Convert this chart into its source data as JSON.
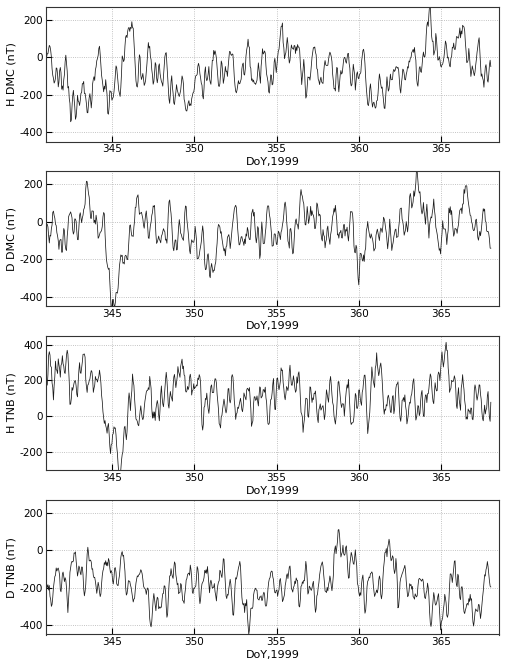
{
  "xlim": [
    341.0,
    368.5
  ],
  "xticks": [
    345,
    350,
    355,
    360,
    365
  ],
  "xlabel": "DoY,1999",
  "panels": [
    {
      "ylabel": "H DMC (nT)",
      "ylim": [
        -450,
        270
      ],
      "yticks": [
        -400,
        -200,
        0,
        200
      ]
    },
    {
      "ylabel": "D DMC (nT)",
      "ylim": [
        -450,
        270
      ],
      "yticks": [
        -400,
        -200,
        0,
        200
      ]
    },
    {
      "ylabel": "H TNB (nT)",
      "ylim": [
        -300,
        450
      ],
      "yticks": [
        -200,
        0,
        200,
        400
      ]
    },
    {
      "ylabel": "D TNB (nT)",
      "ylim": [
        -450,
        270
      ],
      "yticks": [
        -400,
        -200,
        0,
        200
      ]
    }
  ],
  "line_color": "#1a1a1a",
  "line_width": 0.55,
  "grid_color": "#b0b0b0",
  "bg_color": "#ffffff",
  "n_hours": 648,
  "start_day": 341.0
}
